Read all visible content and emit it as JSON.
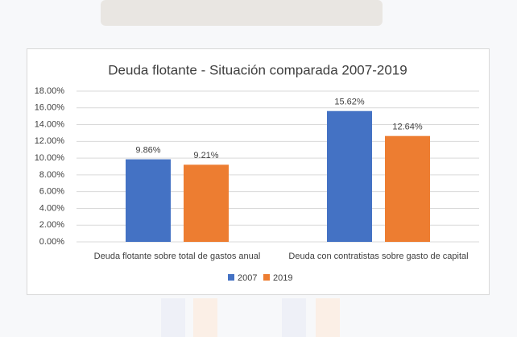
{
  "chart_data": {
    "type": "bar",
    "title": "Deuda flotante - Situación comparada 2007-2019",
    "categories": [
      "Deuda flotante sobre total de gastos anual",
      "Deuda con contratistas sobre gasto de capital"
    ],
    "series": [
      {
        "name": "2007",
        "color": "#4472c4",
        "values": [
          9.86,
          15.62
        ],
        "value_labels": [
          "9.86%",
          "15.62%"
        ]
      },
      {
        "name": "2019",
        "color": "#ed7d31",
        "values": [
          9.21,
          12.64
        ],
        "value_labels": [
          "9.21%",
          "12.64%"
        ]
      }
    ],
    "ylim": [
      0,
      18
    ],
    "yticks": [
      {
        "value": 0,
        "label": "0.00%"
      },
      {
        "value": 2,
        "label": "2.00%"
      },
      {
        "value": 4,
        "label": "4.00%"
      },
      {
        "value": 6,
        "label": "6.00%"
      },
      {
        "value": 8,
        "label": "8.00%"
      },
      {
        "value": 10,
        "label": "10.00%"
      },
      {
        "value": 12,
        "label": "12.00%"
      },
      {
        "value": 14,
        "label": "14.00%"
      },
      {
        "value": 16,
        "label": "16.00%"
      },
      {
        "value": 18,
        "label": "18.00%"
      }
    ],
    "grid": true,
    "legend": "bottom"
  }
}
